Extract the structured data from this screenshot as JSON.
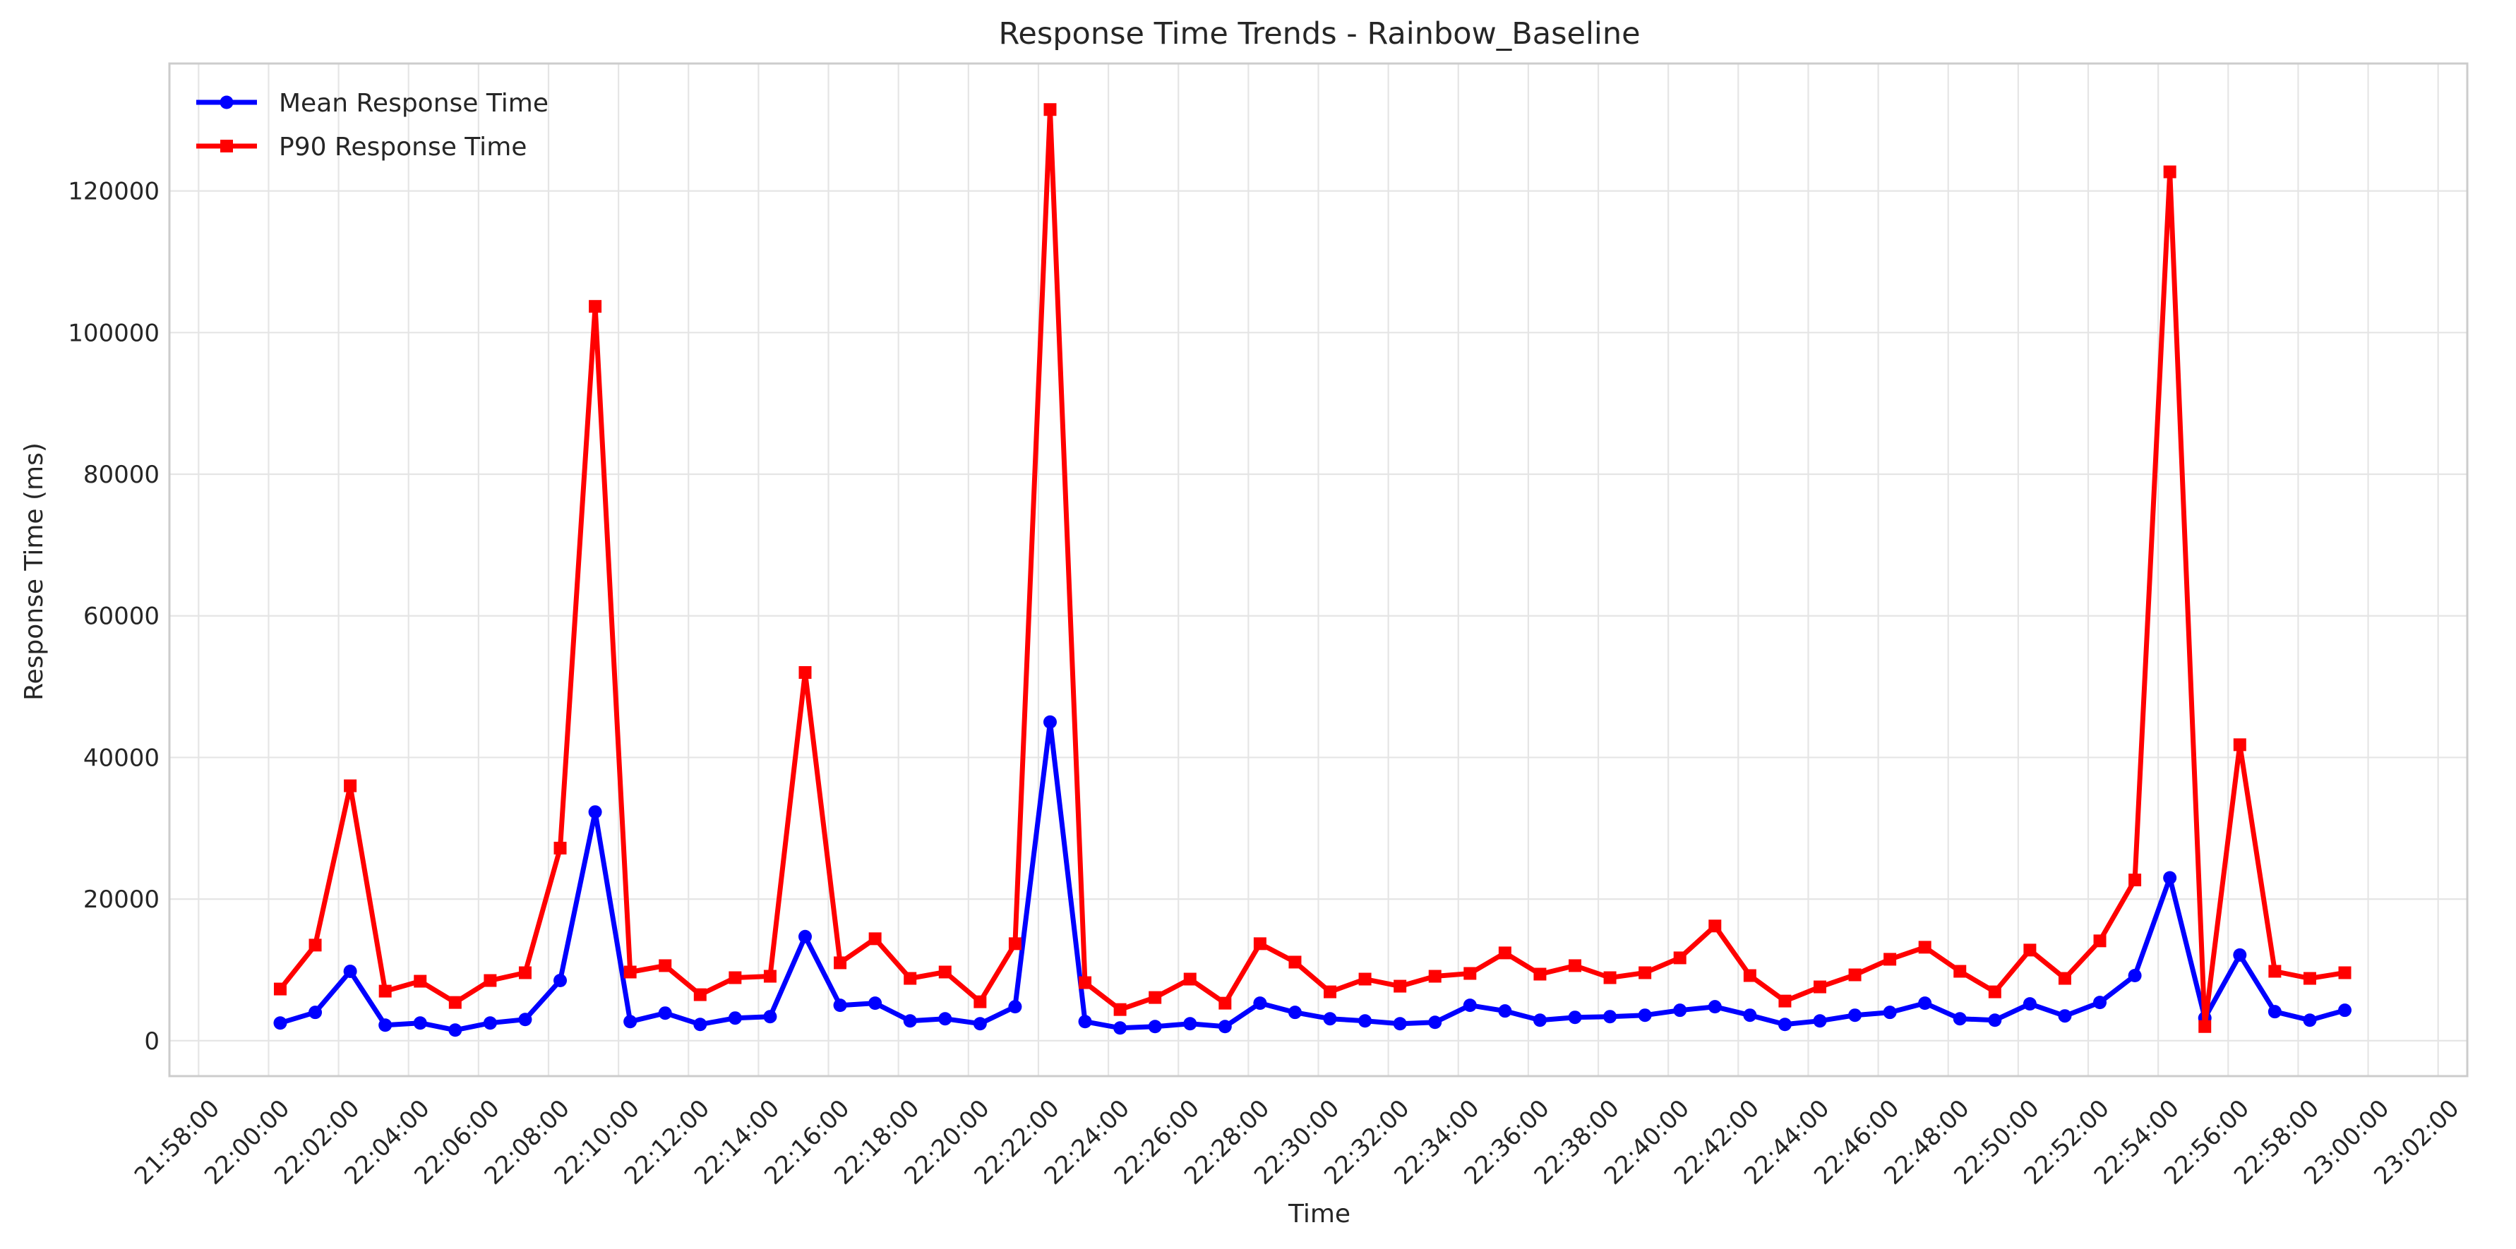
{
  "chart_data": {
    "type": "line",
    "title": "Response Time Trends - Rainbow_Baseline",
    "xlabel": "Time",
    "ylabel": "Response Time (ms)",
    "xlim": [
      "21:57:10",
      "23:02:50"
    ],
    "ylim": [
      -5000,
      138000
    ],
    "x_ticks": [
      "21:58:00",
      "22:00:00",
      "22:02:00",
      "22:04:00",
      "22:06:00",
      "22:08:00",
      "22:10:00",
      "22:12:00",
      "22:14:00",
      "22:16:00",
      "22:18:00",
      "22:20:00",
      "22:22:00",
      "22:24:00",
      "22:26:00",
      "22:28:00",
      "22:30:00",
      "22:32:00",
      "22:34:00",
      "22:36:00",
      "22:38:00",
      "22:40:00",
      "22:42:00",
      "22:44:00",
      "22:46:00",
      "22:48:00",
      "22:50:00",
      "22:52:00",
      "22:54:00",
      "22:56:00",
      "22:58:00",
      "23:00:00",
      "23:02:00"
    ],
    "y_ticks": [
      0,
      20000,
      40000,
      60000,
      80000,
      100000,
      120000
    ],
    "grid": true,
    "legend_position": "top-left",
    "x": [
      "22:00:20",
      "22:01:20",
      "22:02:20",
      "22:03:20",
      "22:04:20",
      "22:05:20",
      "22:06:20",
      "22:07:20",
      "22:08:20",
      "22:09:20",
      "22:10:20",
      "22:11:20",
      "22:12:20",
      "22:13:20",
      "22:14:20",
      "22:15:20",
      "22:16:20",
      "22:17:20",
      "22:18:20",
      "22:19:20",
      "22:20:20",
      "22:21:20",
      "22:22:20",
      "22:23:20",
      "22:24:20",
      "22:25:20",
      "22:26:20",
      "22:27:20",
      "22:28:20",
      "22:29:20",
      "22:30:20",
      "22:31:20",
      "22:32:20",
      "22:33:20",
      "22:34:20",
      "22:35:20",
      "22:36:20",
      "22:37:20",
      "22:38:20",
      "22:39:20",
      "22:40:20",
      "22:41:20",
      "22:42:20",
      "22:43:20",
      "22:44:20",
      "22:45:20",
      "22:46:20",
      "22:47:20",
      "22:48:20",
      "22:49:20",
      "22:50:20",
      "22:51:20",
      "22:52:20",
      "22:53:20",
      "22:54:20",
      "22:55:20",
      "22:56:20",
      "22:57:20",
      "22:58:20",
      "22:59:20"
    ],
    "series": [
      {
        "name": "Mean Response Time",
        "color": "#0000ff",
        "marker": "circle",
        "values": [
          2500,
          4000,
          9800,
          2200,
          2500,
          1500,
          2500,
          3000,
          8500,
          32300,
          2700,
          3900,
          2300,
          3200,
          3400,
          14700,
          5000,
          5300,
          2800,
          3100,
          2400,
          4800,
          45000,
          2700,
          1800,
          2000,
          2400,
          2000,
          5300,
          4000,
          3100,
          2800,
          2400,
          2600,
          5000,
          4200,
          2900,
          3300,
          3400,
          3600,
          4300,
          4800,
          3600,
          2300,
          2800,
          3600,
          4000,
          5300,
          3100,
          2900,
          5200,
          3500,
          5400,
          9200,
          23000,
          3200,
          12100,
          4100,
          2900,
          4300
        ]
      },
      {
        "name": "P90 Response Time",
        "color": "#ff0000",
        "marker": "square",
        "values": [
          7300,
          13500,
          36000,
          7000,
          8400,
          5400,
          8500,
          9600,
          27200,
          103700,
          9700,
          10600,
          6500,
          8900,
          9100,
          52000,
          11000,
          14400,
          8800,
          9700,
          5500,
          13700,
          131500,
          8200,
          4400,
          6100,
          8700,
          5300,
          13700,
          11100,
          6900,
          8700,
          7700,
          9100,
          9500,
          12400,
          9400,
          10600,
          8900,
          9600,
          11700,
          16200,
          9200,
          5600,
          7600,
          9300,
          11500,
          13200,
          9800,
          6900,
          12800,
          8800,
          14100,
          22700,
          122700,
          2000,
          41800,
          9800,
          8800,
          9600
        ]
      }
    ]
  }
}
